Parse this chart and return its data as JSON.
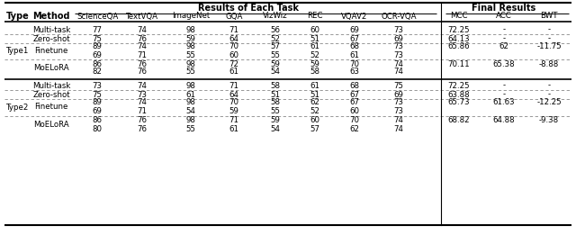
{
  "col_headers": [
    "ScienceQA",
    "TextVQA",
    "ImageNet",
    "GQA",
    "VizWiz",
    "REC",
    "VQAV2",
    "OCR-VQA",
    "MCC",
    "ACC",
    "BWT"
  ],
  "rows_data": [
    [
      "77",
      "74",
      "98",
      "71",
      "56",
      "60",
      "69",
      "73",
      "72.25",
      "-",
      "-"
    ],
    [
      "75",
      "76",
      "59",
      "64",
      "52",
      "51",
      "67",
      "69",
      "64.13",
      "-",
      "-"
    ],
    [
      "89",
      "74",
      "98",
      "70",
      "57",
      "61",
      "68",
      "73",
      "65.86",
      "62",
      "-11.75"
    ],
    [
      "69",
      "71",
      "55",
      "60",
      "55",
      "52",
      "61",
      "73",
      "",
      "",
      ""
    ],
    [
      "86",
      "76",
      "98",
      "72",
      "59",
      "59",
      "70",
      "74",
      "70.11",
      "65.38",
      "-8.88"
    ],
    [
      "82",
      "76",
      "55",
      "61",
      "54",
      "58",
      "63",
      "74",
      "",
      "",
      ""
    ],
    [
      "73",
      "74",
      "98",
      "71",
      "58",
      "61",
      "68",
      "75",
      "72.25",
      "-",
      "-"
    ],
    [
      "75",
      "73",
      "61",
      "64",
      "51",
      "51",
      "67",
      "69",
      "63.88",
      "-",
      "-"
    ],
    [
      "89",
      "74",
      "98",
      "70",
      "58",
      "62",
      "67",
      "73",
      "65.73",
      "61.63",
      "-12.25"
    ],
    [
      "69",
      "71",
      "54",
      "59",
      "55",
      "52",
      "60",
      "73",
      "",
      "",
      ""
    ],
    [
      "86",
      "76",
      "98",
      "71",
      "59",
      "60",
      "70",
      "74",
      "68.82",
      "64.88",
      "-9.38"
    ],
    [
      "80",
      "76",
      "55",
      "61",
      "54",
      "57",
      "62",
      "74",
      "",
      "",
      ""
    ]
  ],
  "method_labels": [
    "Multi-task",
    "Zero-shot",
    "Finetune",
    "",
    "MoELoRA",
    "",
    "Multi-task",
    "Zero-shot",
    "Finetune",
    "",
    "MoELoRA",
    ""
  ],
  "type_labels": [
    "",
    "",
    "Type1",
    "",
    "",
    "",
    "",
    "Type2",
    "",
    "",
    "",
    ""
  ],
  "figsize": [
    6.4,
    2.61
  ],
  "dpi": 100,
  "bg_color": "#ffffff",
  "line_color": "#000000",
  "dashed_color": "#888888",
  "font_size": 6.2,
  "header_font_size": 7.0,
  "bold_font_size": 7.2
}
